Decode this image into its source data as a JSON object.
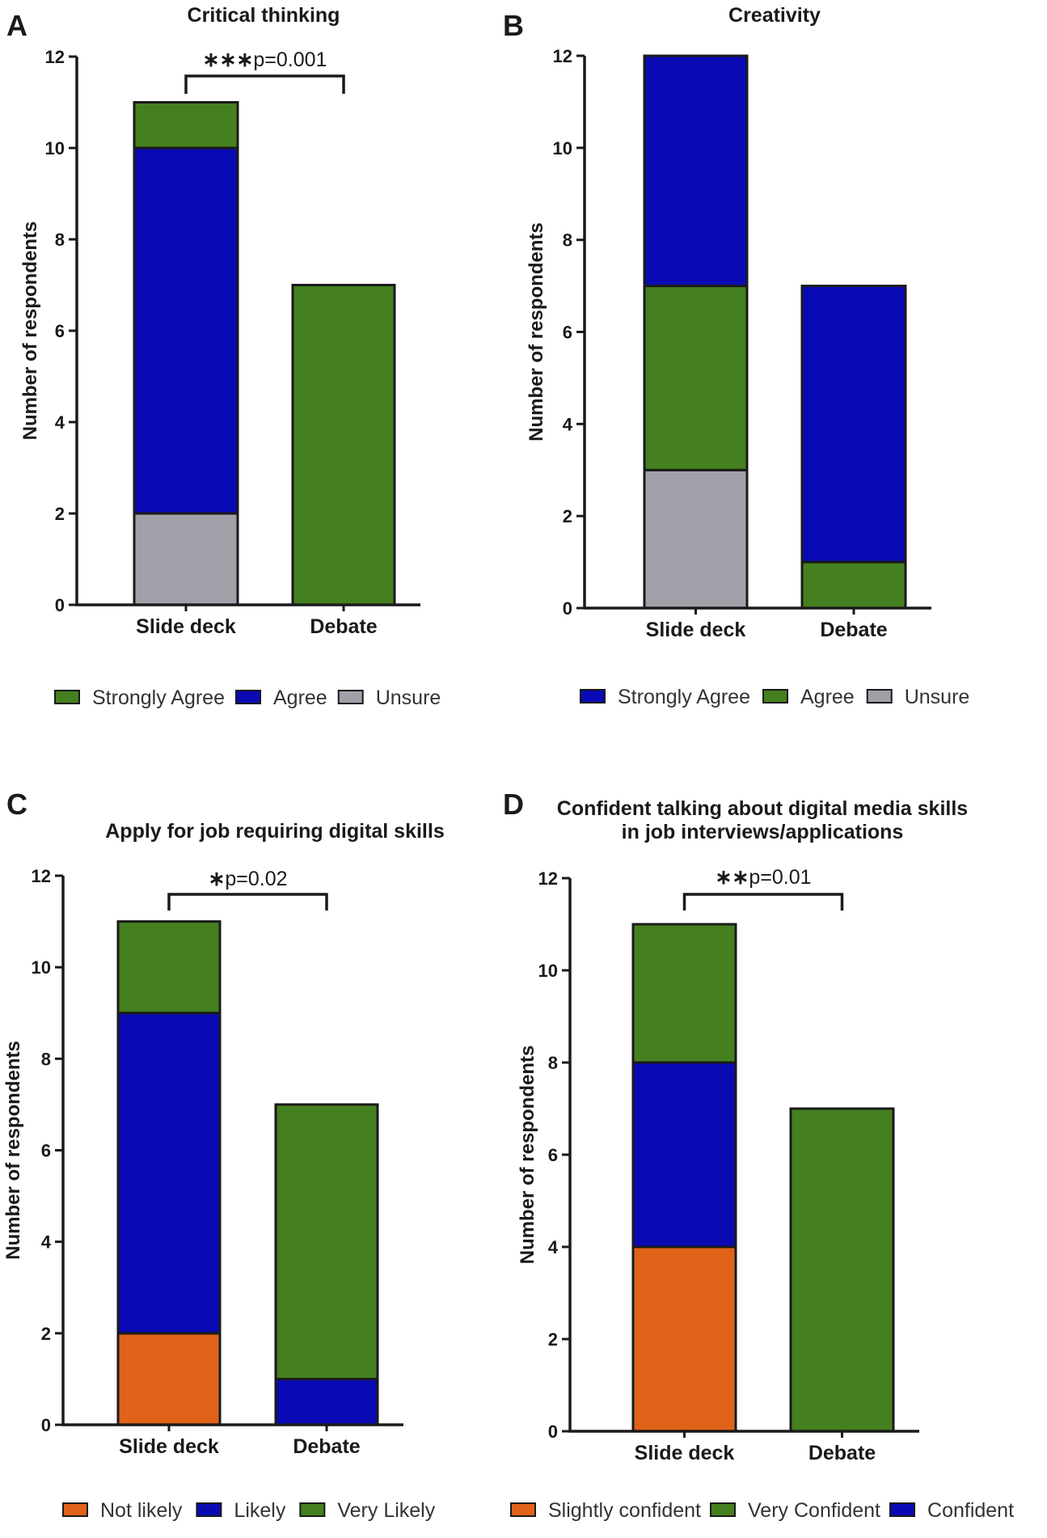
{
  "colors": {
    "green": "#44801f",
    "blue": "#0a0ab4",
    "gray": "#a0a0a8",
    "orange": "#e06218",
    "stroke": "#1a1a1a"
  },
  "chart_data": [
    {
      "panel": "A",
      "type": "bar",
      "stacked": true,
      "title": "Critical thinking",
      "xlabel": "",
      "ylabel": "Number of respondents",
      "ylim": [
        0,
        12
      ],
      "yticks": [
        0,
        2,
        4,
        6,
        8,
        10,
        12
      ],
      "categories": [
        "Slide deck",
        "Debate"
      ],
      "series": [
        {
          "name": "Unsure",
          "color": "gray",
          "values": [
            2,
            0
          ]
        },
        {
          "name": "Agree",
          "color": "blue",
          "values": [
            8,
            0
          ]
        },
        {
          "name": "Strongly Agree",
          "color": "green",
          "values": [
            1,
            7
          ]
        }
      ],
      "legend": [
        {
          "label": "Strongly Agree",
          "color": "green"
        },
        {
          "label": "Agree",
          "color": "blue"
        },
        {
          "label": "Unsure",
          "color": "gray"
        }
      ],
      "legend_position": "bottom",
      "annotation": {
        "stars": "∗∗∗",
        "text": "p=0.001",
        "between": [
          "Slide deck",
          "Debate"
        ]
      }
    },
    {
      "panel": "B",
      "type": "bar",
      "stacked": true,
      "title": "Creativity",
      "xlabel": "",
      "ylabel": "Number of respondents",
      "ylim": [
        0,
        12
      ],
      "yticks": [
        0,
        2,
        4,
        6,
        8,
        10,
        12
      ],
      "categories": [
        "Slide deck",
        "Debate"
      ],
      "series": [
        {
          "name": "Unsure",
          "color": "gray",
          "values": [
            3,
            0
          ]
        },
        {
          "name": "Agree",
          "color": "green",
          "values": [
            4,
            1
          ]
        },
        {
          "name": "Strongly Agree",
          "color": "blue",
          "values": [
            5,
            6
          ]
        }
      ],
      "legend": [
        {
          "label": "Strongly Agree",
          "color": "blue"
        },
        {
          "label": "Agree",
          "color": "green"
        },
        {
          "label": "Unsure",
          "color": "gray"
        }
      ],
      "legend_position": "bottom",
      "annotation": null
    },
    {
      "panel": "C",
      "type": "bar",
      "stacked": true,
      "title": "Apply for job requiring digital skills",
      "xlabel": "",
      "ylabel": "Number of respondents",
      "ylim": [
        0,
        12
      ],
      "yticks": [
        0,
        2,
        4,
        6,
        8,
        10,
        12
      ],
      "categories": [
        "Slide deck",
        "Debate"
      ],
      "series": [
        {
          "name": "Not likely",
          "color": "orange",
          "values": [
            2,
            0
          ]
        },
        {
          "name": "Likely",
          "color": "blue",
          "values": [
            7,
            1
          ]
        },
        {
          "name": "Very Likely",
          "color": "green",
          "values": [
            2,
            6
          ]
        }
      ],
      "legend": [
        {
          "label": "Not likely",
          "color": "orange"
        },
        {
          "label": "Likely",
          "color": "blue"
        },
        {
          "label": "Very Likely",
          "color": "green"
        }
      ],
      "legend_position": "bottom",
      "annotation": {
        "stars": "∗",
        "text": "p=0.02",
        "between": [
          "Slide deck",
          "Debate"
        ]
      }
    },
    {
      "panel": "D",
      "type": "bar",
      "stacked": true,
      "title": "Confident  talking about digital media skills",
      "subtitle": "in job interviews/applications",
      "xlabel": "",
      "ylabel": "Number of respondents",
      "ylim": [
        0,
        12
      ],
      "yticks": [
        0,
        2,
        4,
        6,
        8,
        10,
        12
      ],
      "categories": [
        "Slide deck",
        "Debate"
      ],
      "series": [
        {
          "name": "Slightly confident",
          "color": "orange",
          "values": [
            4,
            0
          ]
        },
        {
          "name": "Confident",
          "color": "blue",
          "values": [
            4,
            0
          ]
        },
        {
          "name": "Very Confident",
          "color": "green",
          "values": [
            3,
            7
          ]
        }
      ],
      "legend": [
        {
          "label": "Slightly confident",
          "color": "orange"
        },
        {
          "label": "Very Confident",
          "color": "green"
        },
        {
          "label": "Confident",
          "color": "blue"
        }
      ],
      "legend_position": "bottom",
      "annotation": {
        "stars": "∗∗",
        "text": "p=0.01",
        "between": [
          "Slide deck",
          "Debate"
        ]
      }
    }
  ]
}
